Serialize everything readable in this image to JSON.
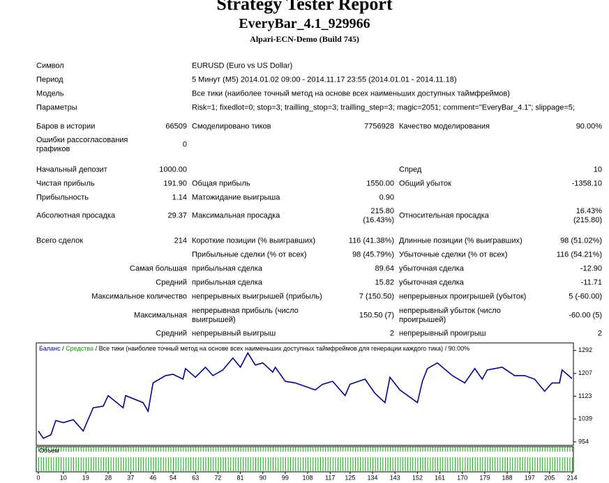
{
  "header": {
    "title": "Strategy Tester Report",
    "subtitle": "EveryBar_4.1_929966",
    "server": "Alpari-ECN-Demo (Build 745)"
  },
  "table": {
    "rows": [
      [
        "Символ",
        "EURUSD (Euro vs US Dollar)"
      ],
      [
        "Период",
        "5 Минут (M5) 2014.01.02 09:00 - 2014.11.17 23:55 (2014.01.01 - 2014.11.18)"
      ],
      [
        "Модель",
        "Все тики (наиболее точный метод на основе всех наименьших доступных таймфреймов)"
      ],
      [
        "Параметры",
        "Risk=1; fixedlot=0; stop=3; trailling_stop=3; trailling_step=3; magic=2051; comment=\"EveryBar_4.1\"; slippage=5;"
      ],
      [
        "Баров в истории",
        "66509",
        "Смоделировано тиков",
        "7756928",
        "Качество моделирования",
        "90.00%"
      ],
      [
        "Ошибки рассогласования графиков",
        "0",
        null,
        null,
        null,
        null
      ],
      [
        "Начальный депозит",
        "1000.00",
        null,
        null,
        "Спред",
        "10"
      ],
      [
        "Чистая прибыль",
        "191.90",
        "Общая прибыль",
        "1550.00",
        "Общий убыток",
        "-1358.10"
      ],
      [
        "Прибыльность",
        "1.14",
        "Матожидание выигрыша",
        "0.90",
        null,
        null
      ],
      [
        "Абсолютная просадка",
        "29.37",
        "Максимальная просадка",
        "215.80 (16.43%)",
        "Относительная просадка",
        "16.43% (215.80)"
      ],
      [
        "Всего сделок",
        "214",
        "Короткие позиции (% выигравших)",
        "116 (41.38%)",
        "Длинные позиции (% выигравших)",
        "98 (51.02%)"
      ],
      [
        null,
        null,
        "Прибыльные сделки (% от всех)",
        "98 (45.79%)",
        "Убыточные сделки (% от всех)",
        "116 (54.21%)"
      ],
      [
        "Самая большая",
        null,
        "прибыльная сделка",
        "89.64",
        "убыточная сделка",
        "-12.90"
      ],
      [
        "Средний",
        null,
        "прибыльная сделка",
        "15.82",
        "убыточная сделка",
        "-11.71"
      ],
      [
        "Максимальное количество",
        null,
        "непрерывных выигрышей (прибыль)",
        "7 (150.50)",
        "непрерывных проигрышей (убыток)",
        "5 (-60.00)"
      ],
      [
        "Максимальная",
        null,
        "непрерывная прибыль (число выигрышей)",
        "150.50 (7)",
        "непрерывный убыток (число проигрышей)",
        "-60.00 (5)"
      ],
      [
        "Средний",
        null,
        "непрерывный выигрыш",
        "2",
        "непрерывный проигрыш",
        "2"
      ]
    ]
  },
  "chart": {
    "type": "line",
    "legend": [
      {
        "name": "Баланс",
        "color": "#0000a0"
      },
      {
        "name": "Средства",
        "color": "#00a000"
      }
    ],
    "separator": "/",
    "caption": "Все тики (наиболее точный метод на основе всех наименьших доступных таймфреймов для генерации каждого тика)",
    "quality": "90.00%",
    "volume_label": "Объем",
    "series": [
      {
        "name": "Баланс",
        "color": "#0000a0",
        "x": [
          0,
          2,
          5,
          7,
          10,
          14,
          18,
          22,
          26,
          28,
          34,
          35,
          42,
          44,
          46,
          51,
          54,
          58,
          59,
          63,
          67,
          70,
          74,
          78,
          81,
          84,
          87,
          90,
          94,
          95,
          99,
          103,
          107,
          111,
          114,
          118,
          123,
          125,
          131,
          135,
          139,
          141,
          145,
          152,
          154,
          156,
          160,
          166,
          171,
          175,
          178,
          180,
          186,
          191,
          195,
          199,
          203,
          206,
          209,
          210,
          212,
          214
        ],
        "values": [
          994,
          967,
          980,
          1033,
          1025,
          1036,
          994,
          1080,
          1086,
          1125,
          1080,
          1125,
          1099,
          1067,
          1172,
          1199,
          1204,
          1186,
          1225,
          1193,
          1230,
          1199,
          1220,
          1264,
          1230,
          1283,
          1238,
          1246,
          1212,
          1230,
          1178,
          1172,
          1159,
          1146,
          1167,
          1178,
          1125,
          1167,
          1186,
          1133,
          1099,
          1193,
          1146,
          1099,
          1178,
          1225,
          1246,
          1199,
          1172,
          1225,
          1186,
          1220,
          1230,
          1199,
          1199,
          1186,
          1141,
          1172,
          1172,
          1220,
          1204,
          1188
        ]
      }
    ],
    "xlim": [
      0,
      214
    ],
    "xticks": [
      0,
      10,
      19,
      28,
      37,
      46,
      54,
      63,
      72,
      81,
      90,
      99,
      108,
      117,
      125,
      134,
      143,
      152,
      161,
      170,
      179,
      188,
      197,
      205,
      214
    ],
    "ylim": [
      941,
      1320
    ],
    "yticks": [
      954,
      1039,
      1123,
      1207,
      1292
    ]
  }
}
